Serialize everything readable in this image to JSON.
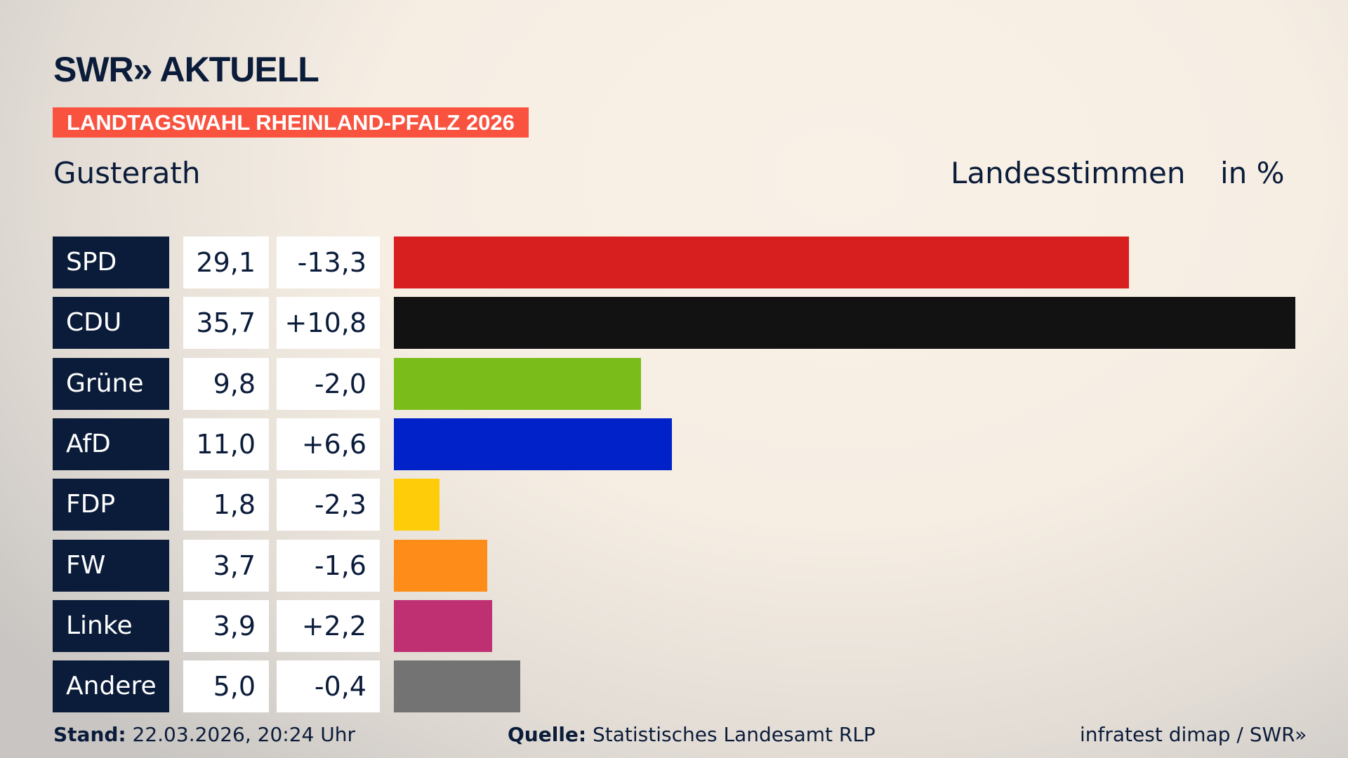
{
  "header": {
    "logo": "SWR» AKTUELL",
    "banner": "LANDTAGSWAHL RHEINLAND-PFALZ 2026",
    "place": "Gusterath",
    "measure": "Landesstimmen",
    "unit": "in %"
  },
  "chart_data": {
    "type": "bar",
    "orientation": "horizontal",
    "categories": [
      "SPD",
      "CDU",
      "Grüne",
      "AfD",
      "FDP",
      "FW",
      "Linke",
      "Andere"
    ],
    "values": [
      29.1,
      35.7,
      9.8,
      11.0,
      1.8,
      3.7,
      3.9,
      5.0
    ],
    "value_labels": [
      "29,1",
      "35,7",
      "9,8",
      "11,0",
      "1,8",
      "3,7",
      "3,9",
      "5,0"
    ],
    "changes": [
      "-13,3",
      "+10,8",
      "-2,0",
      "+6,6",
      "-2,3",
      "-1,6",
      "+2,2",
      "-0,4"
    ],
    "colors": [
      "#d81f1f",
      "#121212",
      "#7abd1a",
      "#0022c8",
      "#ffcc0a",
      "#fd8c18",
      "#bf3073",
      "#737373"
    ],
    "xlim": [
      0,
      35.7
    ]
  },
  "footer": {
    "stand_label": "Stand:",
    "stand": "22.03.2026, 20:24 Uhr",
    "source_label": "Quelle:",
    "source": "Statistisches Landesamt RLP",
    "credit": "infratest dimap / SWR»"
  }
}
